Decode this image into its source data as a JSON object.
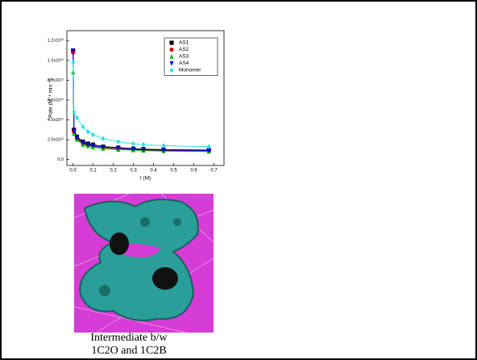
{
  "chart_data": {
    "type": "scatter",
    "x_label": "I (M)",
    "y_label": "Rate (M⁻¹ min⁻¹)",
    "x": [
      0.001,
      0.005,
      0.02,
      0.05,
      0.075,
      0.1,
      0.15,
      0.225,
      0.3,
      0.35,
      0.45,
      0.675
    ],
    "series": [
      {
        "name": "AS1",
        "color": "#000000",
        "marker": "square",
        "values": [
          1100000000000.0,
          300000000000.0,
          230000000000.0,
          180000000000.0,
          160000000000.0,
          150000000000.0,
          130000000000.0,
          120000000000.0,
          110000000000.0,
          105000000000.0,
          100000000000.0,
          95000000000.0
        ]
      },
      {
        "name": "AS2",
        "color": "#e00000",
        "marker": "circle",
        "values": [
          1080000000000.0,
          280000000000.0,
          210000000000.0,
          160000000000.0,
          140000000000.0,
          130000000000.0,
          115000000000.0,
          105000000000.0,
          100000000000.0,
          95000000000.0,
          90000000000.0,
          85000000000.0
        ]
      },
      {
        "name": "AS3",
        "color": "#00c000",
        "marker": "triangle",
        "values": [
          880000000000.0,
          260000000000.0,
          200000000000.0,
          150000000000.0,
          135000000000.0,
          125000000000.0,
          110000000000.0,
          100000000000.0,
          95000000000.0,
          90000000000.0,
          85000000000.0,
          80000000000.0
        ]
      },
      {
        "name": "AS4",
        "color": "#0000e0",
        "marker": "triangle-down",
        "values": [
          1100000000000.0,
          290000000000.0,
          220000000000.0,
          170000000000.0,
          150000000000.0,
          140000000000.0,
          125000000000.0,
          115000000000.0,
          105000000000.0,
          100000000000.0,
          95000000000.0,
          90000000000.0
        ]
      },
      {
        "name": "Monomer",
        "color": "#33e0e0",
        "marker": "diamond",
        "values": [
          980000000000.0,
          480000000000.0,
          420000000000.0,
          330000000000.0,
          280000000000.0,
          250000000000.0,
          210000000000.0,
          180000000000.0,
          160000000000.0,
          150000000000.0,
          140000000000.0,
          130000000000.0
        ]
      }
    ],
    "xlim": [
      -0.03,
      0.75
    ],
    "ylim": [
      -60000000000.0,
      1300000000000.0
    ],
    "xticks": [
      {
        "value": 0,
        "label": "0.0"
      },
      0.1,
      0.2,
      0.3,
      0.4,
      0.5,
      0.6,
      0.7
    ],
    "yticks": [
      {
        "value": 0,
        "label": "0.0"
      },
      {
        "value": 200000000000.0,
        "label": "2.0x10¹¹"
      },
      {
        "value": 400000000000.0,
        "label": "4.0x10¹¹"
      },
      {
        "value": 600000000000.0,
        "label": "6.0x10¹¹"
      },
      {
        "value": 800000000000.0,
        "label": "8.0x10¹¹"
      },
      {
        "value": 1000000000000.0,
        "label": "1.0x10¹²"
      },
      {
        "value": 1200000000000.0,
        "label": "1.2x10¹²"
      }
    ],
    "legend": "upper-right",
    "grid": false
  },
  "caption": [
    "Intermediate b/w",
    "1C2O and 1C2B"
  ]
}
